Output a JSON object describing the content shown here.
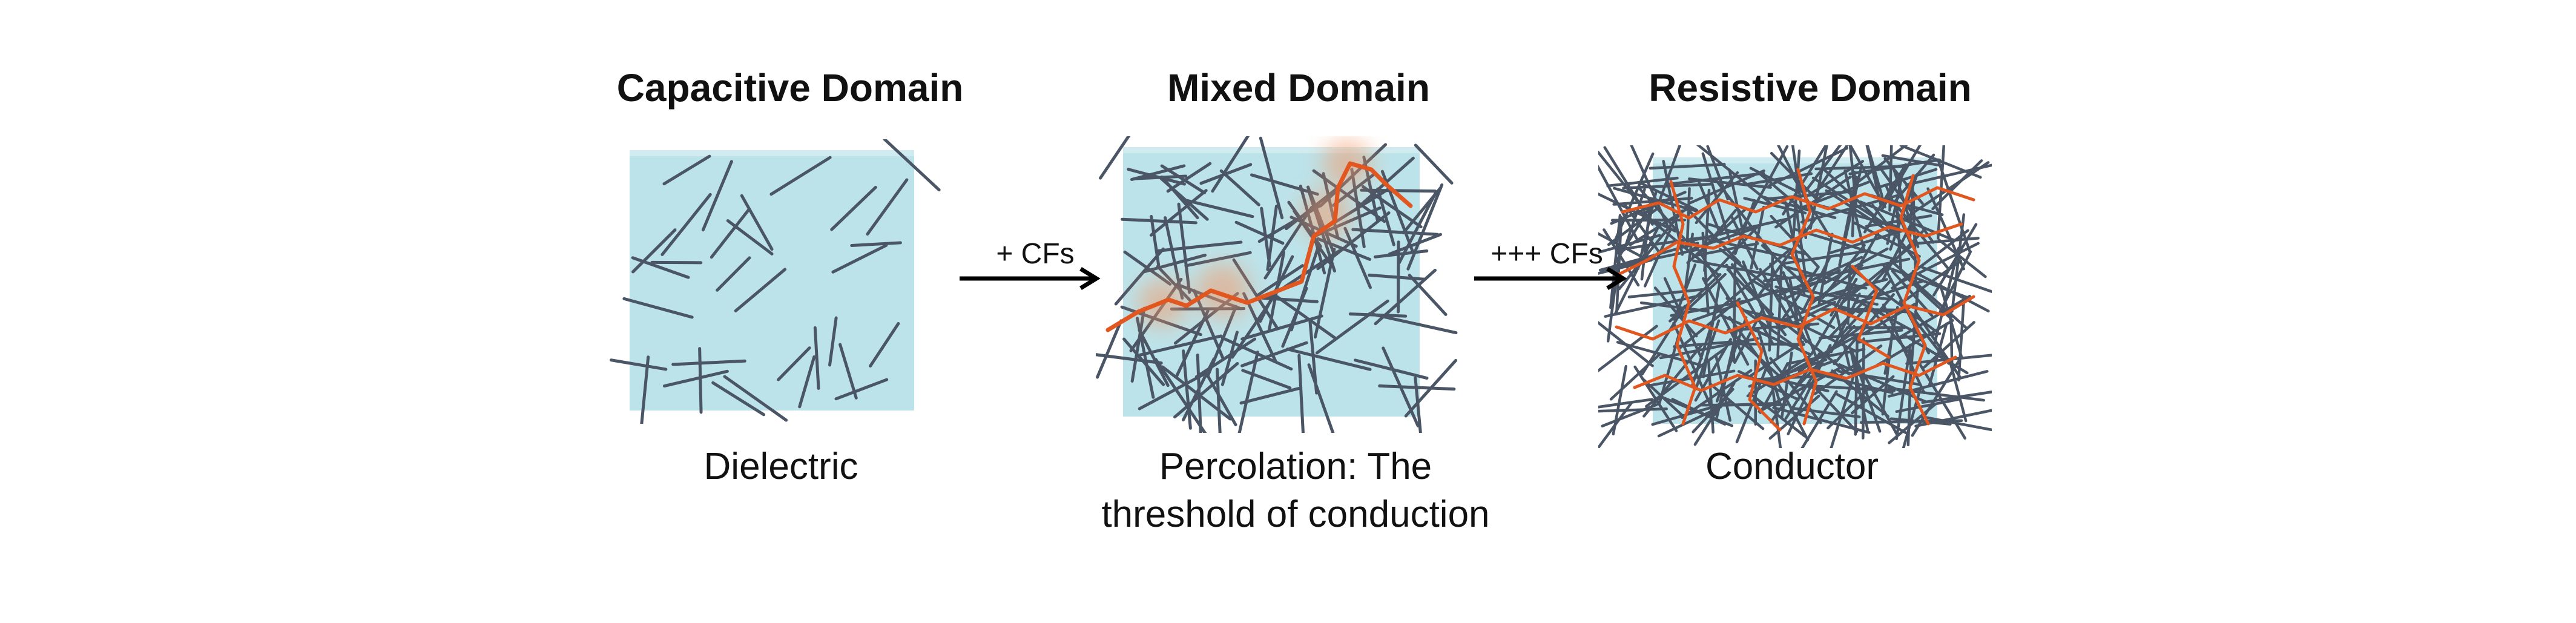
{
  "panels": [
    {
      "title": "Capacitive Domain",
      "caption_lines": [
        "Dielectric"
      ]
    },
    {
      "title": "Mixed Domain",
      "caption_lines": [
        "Percolation: The",
        "threshold of conduction"
      ]
    },
    {
      "title": "Resistive Domain",
      "caption_lines": [
        "Conductor"
      ]
    }
  ],
  "arrows": [
    {
      "label": "+ CFs"
    },
    {
      "label": "+++ CFs"
    }
  ],
  "colors": {
    "matrix_fill": "#b5e0e8",
    "fiber": "#4a5565",
    "conductive_path": "#e2561f",
    "glow": "#f39a6a",
    "arrow": "#000000"
  }
}
